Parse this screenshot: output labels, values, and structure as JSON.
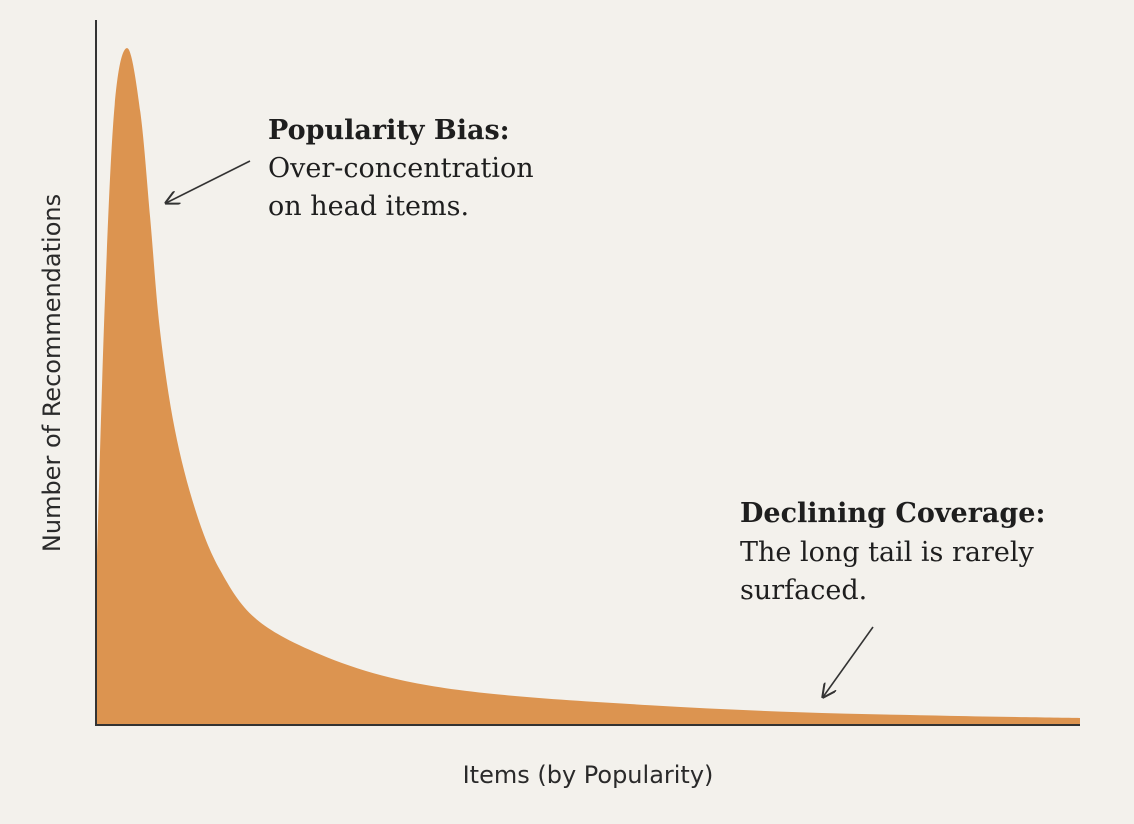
{
  "chart_data": {
    "type": "area",
    "x_label": "Items (by Popularity)",
    "y_label": "Number of Recommendations",
    "color": "#dc9450",
    "xlim": [
      0,
      100
    ],
    "ylim": [
      0,
      100
    ],
    "x": [
      0,
      0.9,
      1.9,
      3.2,
      4.5,
      5.5,
      6.5,
      8,
      10.1,
      12.6,
      16.3,
      22.8,
      30.9,
      41.1,
      56.3,
      71.5,
      86.8,
      100
    ],
    "values": [
      19,
      60,
      88,
      96,
      87,
      72,
      56,
      42,
      30.5,
      22,
      15,
      10,
      6.4,
      4.3,
      2.8,
      1.8,
      1.3,
      1.0
    ],
    "annotations": [
      {
        "title": "Popularity Bias:",
        "lines": [
          "Over-concentration",
          "on head items."
        ]
      },
      {
        "title": "Declining Coverage:",
        "lines": [
          "The long tail is rarely",
          "surfaced."
        ]
      }
    ]
  }
}
